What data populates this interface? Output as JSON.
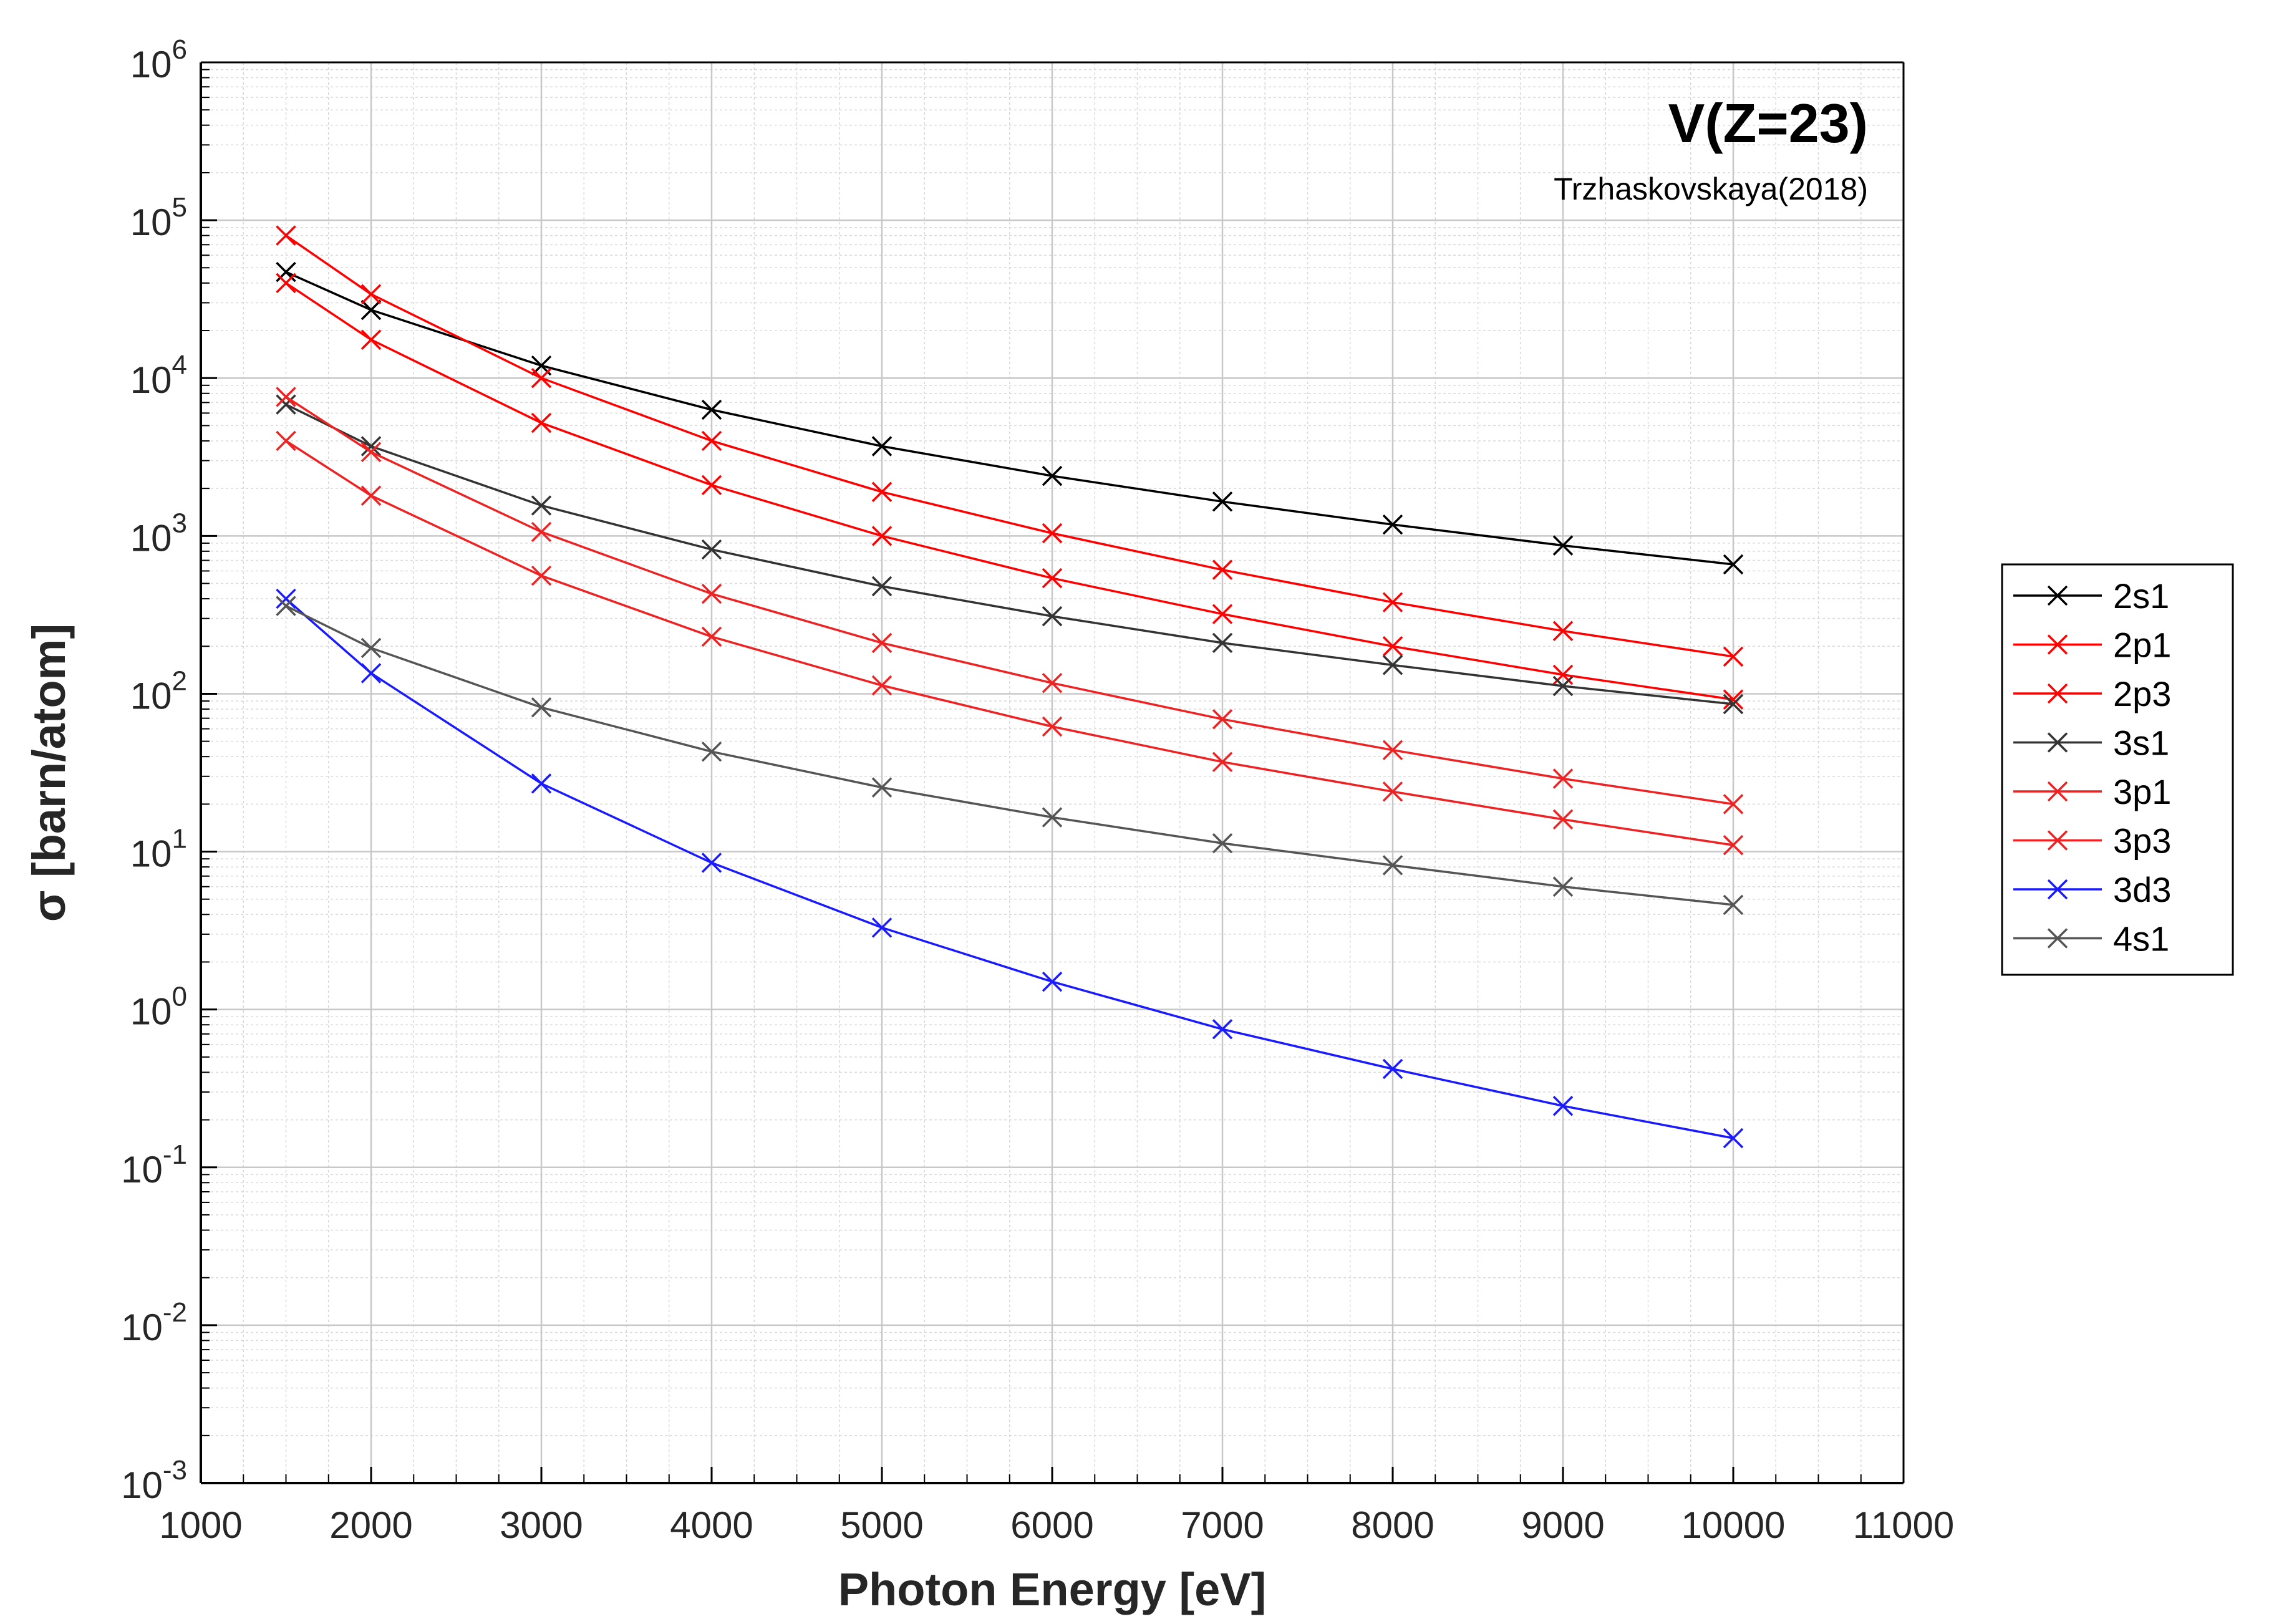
{
  "chart_data": {
    "type": "line",
    "title": "V(Z=23)",
    "subtitle": "Trzhaskovskaya(2018)",
    "xlabel": "Photon Energy [eV]",
    "ylabel": "σ [barn/atom]",
    "xscale": "linear",
    "yscale": "log",
    "xlim": [
      1000,
      11000
    ],
    "ylim": [
      0.001,
      1000000
    ],
    "grid": true,
    "minor_grid": true,
    "legend_position": "outside-right",
    "x_ticks": [
      "1000",
      "2000",
      "3000",
      "4000",
      "5000",
      "6000",
      "7000",
      "8000",
      "9000",
      "10000",
      "11000"
    ],
    "y_ticks": [
      {
        "base": "10",
        "exp": "-3"
      },
      {
        "base": "10",
        "exp": "-2"
      },
      {
        "base": "10",
        "exp": "-1"
      },
      {
        "base": "10",
        "exp": "0"
      },
      {
        "base": "10",
        "exp": "1"
      },
      {
        "base": "10",
        "exp": "2"
      },
      {
        "base": "10",
        "exp": "3"
      },
      {
        "base": "10",
        "exp": "4"
      },
      {
        "base": "10",
        "exp": "5"
      },
      {
        "base": "10",
        "exp": "6"
      }
    ],
    "x": [
      1500,
      2000,
      3000,
      4000,
      5000,
      6000,
      7000,
      8000,
      9000,
      10000
    ],
    "series": [
      {
        "name": "2s1",
        "color": "#000000",
        "values": [
          47000,
          27000,
          12000,
          6300,
          3700,
          2400,
          1650,
          1180,
          870,
          660
        ]
      },
      {
        "name": "2p1",
        "color": "#ff0000",
        "values": [
          40000,
          17500,
          5200,
          2100,
          1000,
          540,
          320,
          200,
          132,
          92
        ]
      },
      {
        "name": "2p3",
        "color": "#ff0000",
        "values": [
          80000,
          34000,
          10000,
          4000,
          1900,
          1040,
          610,
          380,
          250,
          172
        ]
      },
      {
        "name": "3s1",
        "color": "#333333",
        "values": [
          6800,
          3700,
          1560,
          820,
          480,
          310,
          210,
          152,
          112,
          86
        ]
      },
      {
        "name": "3p1",
        "color": "#ee2222",
        "values": [
          4000,
          1800,
          560,
          230,
          113,
          62,
          37,
          24,
          16,
          11
        ]
      },
      {
        "name": "3p3",
        "color": "#ee2222",
        "values": [
          7600,
          3400,
          1060,
          430,
          210,
          117,
          69,
          44,
          29,
          20
        ]
      },
      {
        "name": "3d3",
        "color": "#1a1aff",
        "values": [
          400,
          135,
          27,
          8.5,
          3.3,
          1.5,
          0.75,
          0.42,
          0.245,
          0.153
        ]
      },
      {
        "name": "4s1",
        "color": "#555555",
        "values": [
          360,
          195,
          82,
          43,
          25.5,
          16.5,
          11.3,
          8.2,
          6.0,
          4.6
        ]
      }
    ]
  }
}
